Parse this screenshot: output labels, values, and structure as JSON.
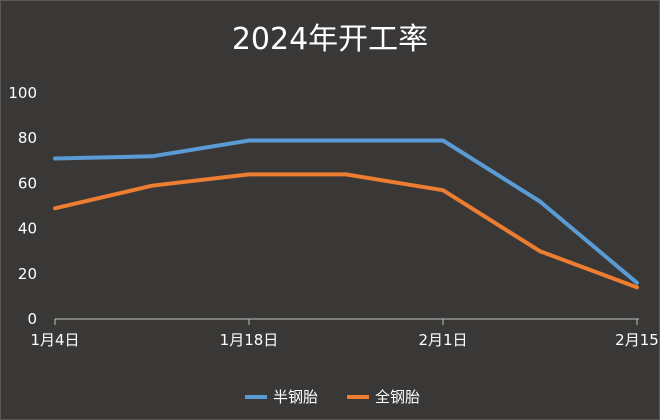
{
  "chart_data": {
    "type": "line",
    "title": "2024年开工率",
    "xlabel": "",
    "ylabel": "",
    "ylim": [
      0,
      100
    ],
    "yticks": [
      0,
      20,
      40,
      60,
      80,
      100
    ],
    "x": [
      "2024-01-04",
      "2024-01-11",
      "2024-01-18",
      "2024-01-25",
      "2024-02-01",
      "2024-02-08",
      "2024-02-15"
    ],
    "xtick_labels": [
      "1月4日",
      "1月18日",
      "2月1日",
      "2月15"
    ],
    "xtick_index": [
      0,
      2,
      4,
      6
    ],
    "series": [
      {
        "name": "半钢胎",
        "color": "#5b9bd5",
        "values": [
          71,
          72,
          79,
          79,
          79,
          52,
          16
        ]
      },
      {
        "name": "全钢胎",
        "color": "#ed7d31",
        "values": [
          49,
          59,
          64,
          64,
          57,
          30,
          14
        ]
      }
    ],
    "grid": false,
    "legend": "bottom"
  }
}
